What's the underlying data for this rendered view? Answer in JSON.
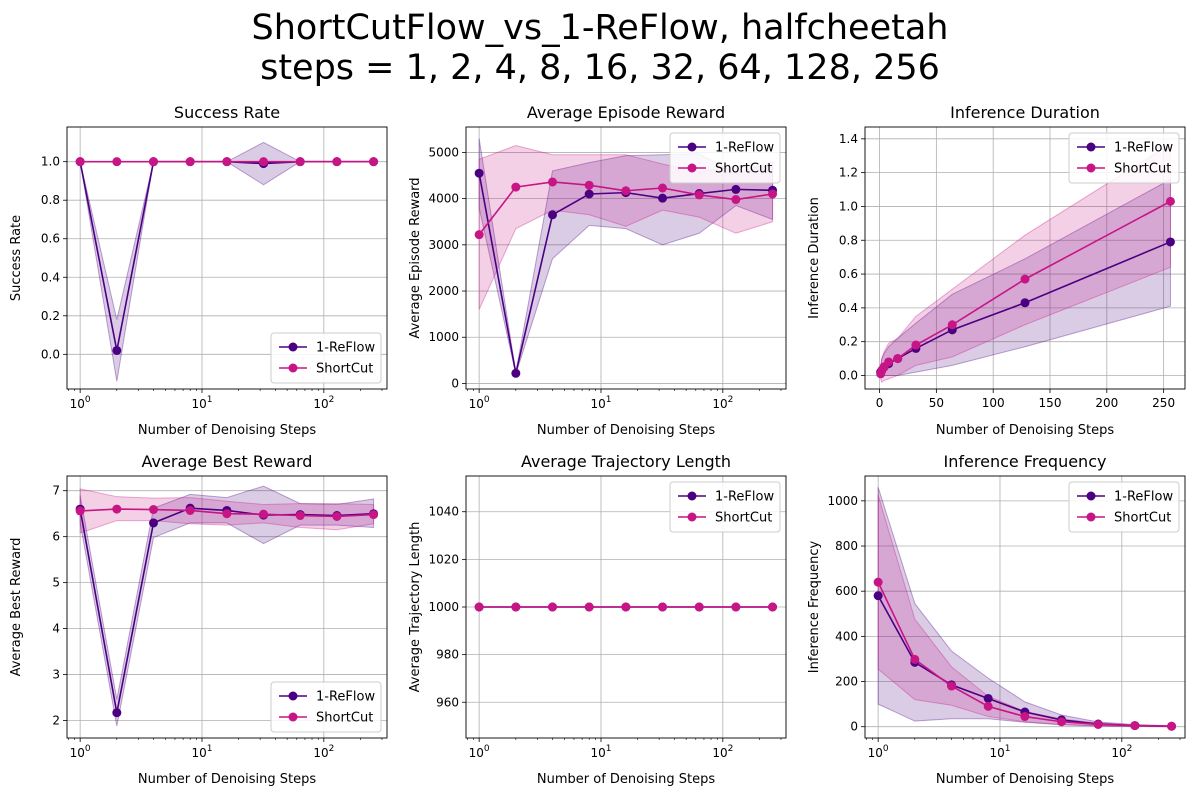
{
  "figure": {
    "suptitle_line1": "ShortCutFlow_vs_1-ReFlow, halfcheetah",
    "suptitle_line2": "steps = 1, 2, 4, 8, 16, 32, 64, 128, 256",
    "colors": {
      "reflow": "#4b0082",
      "shortcut": "#c71585",
      "grid": "#b0b0b0"
    }
  },
  "chart_data": [
    {
      "type": "line",
      "title": "Success Rate",
      "xlabel": "Number of Denoising Steps",
      "ylabel": "Success Rate",
      "xscale": "log",
      "xlim": [
        0.78,
        330
      ],
      "ylim": [
        -0.18,
        1.18
      ],
      "xticks": [
        1,
        10,
        100
      ],
      "yticks": [
        0.0,
        0.2,
        0.4,
        0.6,
        0.8,
        1.0
      ],
      "legend": "lower right",
      "grid": true,
      "x": [
        1,
        2,
        4,
        8,
        16,
        32,
        64,
        128,
        256
      ],
      "series": [
        {
          "name": "1-ReFlow",
          "values": [
            1.0,
            0.02,
            1.0,
            1.0,
            1.0,
            0.99,
            1.0,
            1.0,
            1.0
          ],
          "lower": [
            1.0,
            -0.14,
            1.0,
            1.0,
            1.0,
            0.88,
            1.0,
            1.0,
            1.0
          ],
          "upper": [
            1.0,
            0.18,
            1.0,
            1.0,
            1.0,
            1.1,
            1.0,
            1.0,
            1.0
          ]
        },
        {
          "name": "ShortCut",
          "values": [
            1.0,
            1.0,
            1.0,
            1.0,
            1.0,
            1.0,
            1.0,
            1.0,
            1.0
          ],
          "lower": [
            1.0,
            1.0,
            1.0,
            1.0,
            1.0,
            1.0,
            1.0,
            1.0,
            1.0
          ],
          "upper": [
            1.0,
            1.0,
            1.0,
            1.0,
            1.0,
            1.0,
            1.0,
            1.0,
            1.0
          ]
        }
      ]
    },
    {
      "type": "line",
      "title": "Average Episode Reward",
      "xlabel": "Number of Denoising Steps",
      "ylabel": "Average Episode Reward",
      "xscale": "log",
      "xlim": [
        0.78,
        330
      ],
      "ylim": [
        -120,
        5550
      ],
      "xticks": [
        1,
        10,
        100
      ],
      "yticks": [
        0,
        1000,
        2000,
        3000,
        4000,
        5000
      ],
      "legend": "upper right",
      "grid": true,
      "x": [
        1,
        2,
        4,
        8,
        16,
        32,
        64,
        128,
        256
      ],
      "series": [
        {
          "name": "1-ReFlow",
          "values": [
            4550,
            220,
            3650,
            4100,
            4130,
            4010,
            4110,
            4200,
            4180
          ],
          "lower": [
            3800,
            200,
            2700,
            3420,
            3350,
            3000,
            3250,
            3850,
            3550
          ],
          "upper": [
            5300,
            240,
            4600,
            4780,
            4930,
            4950,
            4970,
            4550,
            4800
          ]
        },
        {
          "name": "ShortCut",
          "values": [
            3220,
            4250,
            4360,
            4290,
            4170,
            4230,
            4080,
            3980,
            4100
          ],
          "lower": [
            1600,
            3350,
            3750,
            3650,
            3400,
            3750,
            3600,
            3250,
            3500
          ],
          "upper": [
            4850,
            5150,
            4950,
            4950,
            4950,
            4750,
            4580,
            4700,
            4700
          ]
        }
      ]
    },
    {
      "type": "line",
      "title": "Inference Duration",
      "xlabel": "Number of Denoising Steps",
      "ylabel": "Inference Duration",
      "xscale": "linear",
      "xlim": [
        -12.8,
        268.8
      ],
      "ylim": [
        -0.08,
        1.47
      ],
      "xticks": [
        0,
        50,
        100,
        150,
        200,
        250
      ],
      "yticks": [
        0.0,
        0.2,
        0.4,
        0.6,
        0.8,
        1.0,
        1.2,
        1.4
      ],
      "legend": "upper right",
      "grid": true,
      "x": [
        1,
        2,
        4,
        8,
        16,
        32,
        64,
        128,
        256
      ],
      "series": [
        {
          "name": "1-ReFlow",
          "values": [
            0.02,
            0.03,
            0.05,
            0.07,
            0.1,
            0.16,
            0.27,
            0.43,
            0.79
          ],
          "lower": [
            0.0,
            0.0,
            0.0,
            0.0,
            0.0,
            0.02,
            0.06,
            0.17,
            0.41
          ],
          "upper": [
            0.06,
            0.1,
            0.13,
            0.17,
            0.22,
            0.31,
            0.48,
            0.69,
            1.16
          ]
        },
        {
          "name": "ShortCut",
          "values": [
            0.01,
            0.03,
            0.05,
            0.08,
            0.1,
            0.18,
            0.3,
            0.57,
            1.03
          ],
          "lower": [
            -0.02,
            -0.04,
            -0.03,
            -0.02,
            0.0,
            0.06,
            0.11,
            0.3,
            0.64
          ],
          "upper": [
            0.05,
            0.1,
            0.14,
            0.19,
            0.22,
            0.35,
            0.51,
            0.83,
            1.37
          ]
        }
      ]
    },
    {
      "type": "line",
      "title": "Average Best Reward",
      "xlabel": "Number of Denoising Steps",
      "ylabel": "Average Best Reward",
      "xscale": "log",
      "xlim": [
        0.78,
        330
      ],
      "ylim": [
        1.62,
        7.32
      ],
      "xticks": [
        1,
        10,
        100
      ],
      "yticks": [
        2,
        3,
        4,
        5,
        6,
        7
      ],
      "legend": "lower right",
      "grid": true,
      "x": [
        1,
        2,
        4,
        8,
        16,
        32,
        64,
        128,
        256
      ],
      "series": [
        {
          "name": "1-ReFlow",
          "values": [
            6.6,
            2.17,
            6.3,
            6.62,
            6.57,
            6.47,
            6.48,
            6.46,
            6.5
          ],
          "lower": [
            6.3,
            1.88,
            5.98,
            6.3,
            6.3,
            5.85,
            6.25,
            6.25,
            6.2
          ],
          "upper": [
            6.9,
            2.46,
            6.62,
            6.92,
            6.85,
            7.1,
            6.72,
            6.7,
            6.82
          ]
        },
        {
          "name": "ShortCut",
          "values": [
            6.56,
            6.6,
            6.59,
            6.57,
            6.5,
            6.49,
            6.46,
            6.44,
            6.48
          ],
          "lower": [
            6.08,
            6.35,
            6.35,
            6.28,
            6.25,
            6.3,
            6.2,
            6.15,
            6.28
          ],
          "upper": [
            7.04,
            6.87,
            6.84,
            6.85,
            6.77,
            6.7,
            6.72,
            6.72,
            6.7
          ]
        }
      ]
    },
    {
      "type": "line",
      "title": "Average Trajectory Length",
      "xlabel": "Number of Denoising Steps",
      "ylabel": "Average Trajectory Length",
      "xscale": "log",
      "xlim": [
        0.78,
        330
      ],
      "ylim": [
        945,
        1055
      ],
      "xticks": [
        1,
        10,
        100
      ],
      "yticks": [
        960,
        980,
        1000,
        1020,
        1040
      ],
      "legend": "upper right",
      "grid": true,
      "x": [
        1,
        2,
        4,
        8,
        16,
        32,
        64,
        128,
        256
      ],
      "series": [
        {
          "name": "1-ReFlow",
          "values": [
            1000,
            1000,
            1000,
            1000,
            1000,
            1000,
            1000,
            1000,
            1000
          ],
          "lower": [
            1000,
            1000,
            1000,
            1000,
            1000,
            1000,
            1000,
            1000,
            1000
          ],
          "upper": [
            1000,
            1000,
            1000,
            1000,
            1000,
            1000,
            1000,
            1000,
            1000
          ]
        },
        {
          "name": "ShortCut",
          "values": [
            1000,
            1000,
            1000,
            1000,
            1000,
            1000,
            1000,
            1000,
            1000
          ],
          "lower": [
            1000,
            1000,
            1000,
            1000,
            1000,
            1000,
            1000,
            1000,
            1000
          ],
          "upper": [
            1000,
            1000,
            1000,
            1000,
            1000,
            1000,
            1000,
            1000,
            1000
          ]
        }
      ]
    },
    {
      "type": "line",
      "title": "Inference Frequency",
      "xlabel": "Number of Denoising Steps",
      "ylabel": "Inference Frequency",
      "xscale": "log",
      "xlim": [
        0.78,
        330
      ],
      "ylim": [
        -50,
        1110
      ],
      "xticks": [
        1,
        10,
        100
      ],
      "yticks": [
        0,
        200,
        400,
        600,
        800,
        1000
      ],
      "legend": "upper right",
      "grid": true,
      "x": [
        1,
        2,
        4,
        8,
        16,
        32,
        64,
        128,
        256
      ],
      "series": [
        {
          "name": "1-ReFlow",
          "values": [
            580,
            285,
            185,
            125,
            65,
            30,
            12,
            5,
            2
          ],
          "lower": [
            100,
            25,
            35,
            35,
            20,
            8,
            3,
            1,
            0
          ],
          "upper": [
            1060,
            545,
            335,
            215,
            110,
            52,
            21,
            9,
            4
          ]
        },
        {
          "name": "ShortCut",
          "values": [
            640,
            298,
            180,
            90,
            45,
            22,
            10,
            5,
            2
          ],
          "lower": [
            255,
            120,
            95,
            45,
            22,
            10,
            4,
            2,
            0
          ],
          "upper": [
            1025,
            476,
            265,
            135,
            68,
            34,
            16,
            8,
            4
          ]
        }
      ]
    }
  ]
}
